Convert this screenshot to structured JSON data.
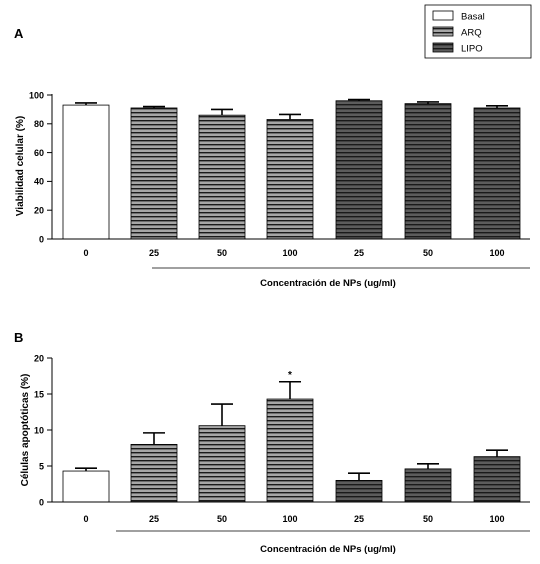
{
  "legend": {
    "items": [
      {
        "label": "Basal",
        "pattern": "empty"
      },
      {
        "label": "ARQ",
        "pattern": "light-stripes"
      },
      {
        "label": "LIPO",
        "pattern": "dark-stripes"
      }
    ],
    "placement": "top-right"
  },
  "colors": {
    "arq_fill": "#a6a6a6",
    "lipo_fill": "#5c5c5c",
    "stripe": "#1a1a1a",
    "basal_fill": "#ffffff"
  },
  "chart_data": [
    {
      "type": "bar",
      "panel_label": "A",
      "categories": [
        "0",
        "25",
        "50",
        "100",
        "25",
        "50",
        "100"
      ],
      "groups": [
        "Basal",
        "ARQ",
        "ARQ",
        "ARQ",
        "LIPO",
        "LIPO",
        "LIPO"
      ],
      "values": [
        93,
        91,
        86,
        83,
        96,
        94,
        91
      ],
      "errors": [
        1.5,
        1,
        4,
        3.5,
        0.8,
        1.2,
        1.5
      ],
      "annotations": [
        "",
        "",
        "",
        "",
        "",
        "",
        ""
      ],
      "ylabel": "Viabilidad celular (%)",
      "xlabel": "Concentración de NPs (ug/ml)",
      "ylim": [
        0,
        100
      ],
      "yticks": [
        0,
        20,
        40,
        60,
        80,
        100
      ],
      "grid": false
    },
    {
      "type": "bar",
      "panel_label": "B",
      "categories": [
        "0",
        "25",
        "50",
        "100",
        "25",
        "50",
        "100"
      ],
      "groups": [
        "Basal",
        "ARQ",
        "ARQ",
        "ARQ",
        "LIPO",
        "LIPO",
        "LIPO"
      ],
      "values": [
        4.3,
        8,
        10.6,
        14.3,
        3,
        4.6,
        6.3
      ],
      "errors": [
        0.4,
        1.6,
        3,
        2.4,
        1,
        0.7,
        0.9
      ],
      "annotations": [
        "",
        "",
        "",
        "*",
        "",
        "",
        ""
      ],
      "ylabel": "Células apoptóticas (%)",
      "xlabel": "Concentración de NPs (ug/ml)",
      "ylim": [
        0,
        20
      ],
      "yticks": [
        0,
        5,
        10,
        15,
        20
      ],
      "grid": false
    }
  ]
}
